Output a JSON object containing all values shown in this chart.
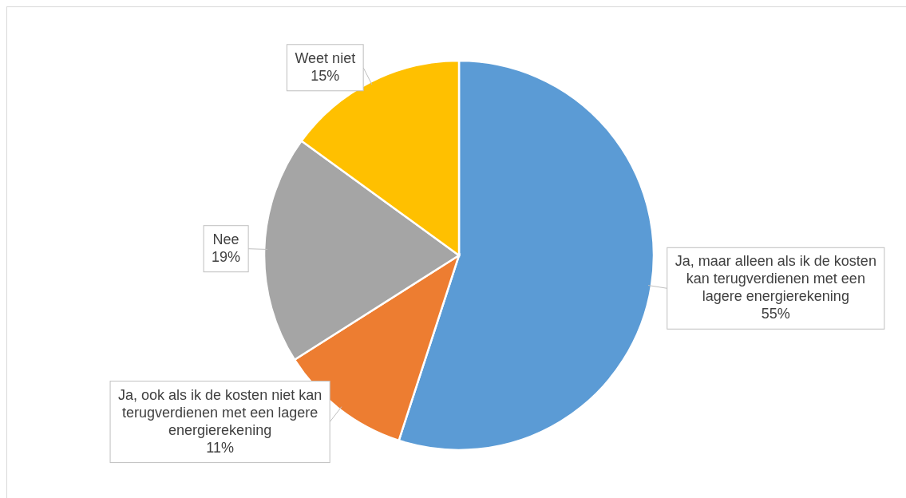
{
  "chart_data": {
    "type": "pie",
    "categories": [
      "Ja, maar alleen als ik de kosten kan terugverdienen met een lagere energierekening",
      "Ja, ook als ik de kosten niet kan terugverdienen met een lagere energierekening",
      "Nee",
      "Weet niet"
    ],
    "values": [
      55,
      11,
      19,
      15
    ],
    "value_labels": [
      "55%",
      "11%",
      "19%",
      "15%"
    ],
    "colors": [
      "#5b9bd5",
      "#ed7d31",
      "#a5a5a5",
      "#ffc000"
    ]
  }
}
